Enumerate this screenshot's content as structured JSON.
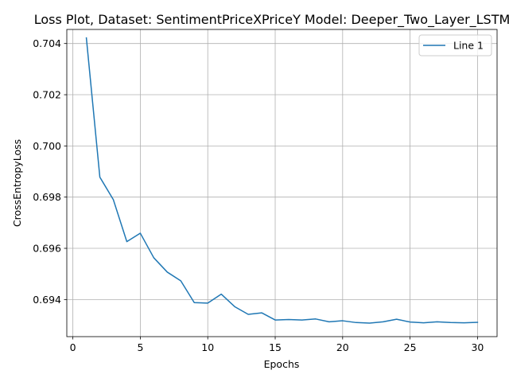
{
  "chart_data": {
    "type": "line",
    "title": "Loss Plot, Dataset: SentimentPriceXPriceY Model: Deeper_Two_Layer_LSTM",
    "xlabel": "Epochs",
    "ylabel": "CrossEntropyLoss",
    "xlim": [
      -0.45,
      31.45
    ],
    "ylim": [
      0.69255,
      0.70455
    ],
    "xticks": [
      0,
      5,
      10,
      15,
      20,
      25,
      30
    ],
    "xtick_labels": [
      "0",
      "5",
      "10",
      "15",
      "20",
      "25",
      "30"
    ],
    "yticks": [
      0.694,
      0.696,
      0.698,
      0.7,
      0.702,
      0.704
    ],
    "ytick_labels": [
      "0.694",
      "0.696",
      "0.698",
      "0.700",
      "0.702",
      "0.704"
    ],
    "grid": true,
    "legend_position": "upper right",
    "series": [
      {
        "name": "Line 1",
        "color": "#1f77b4",
        "x": [
          1,
          2,
          3,
          4,
          5,
          6,
          7,
          8,
          9,
          10,
          11,
          12,
          13,
          14,
          15,
          16,
          17,
          18,
          19,
          20,
          21,
          22,
          23,
          24,
          25,
          26,
          27,
          28,
          29,
          30
        ],
        "values": [
          0.70422,
          0.69878,
          0.6979,
          0.69626,
          0.69659,
          0.69563,
          0.69507,
          0.69473,
          0.69388,
          0.69386,
          0.69421,
          0.69372,
          0.69342,
          0.69348,
          0.6932,
          0.69322,
          0.6932,
          0.69324,
          0.69313,
          0.69317,
          0.6931,
          0.69308,
          0.69313,
          0.69323,
          0.69312,
          0.69309,
          0.69313,
          0.6931,
          0.69309,
          0.69311
        ]
      }
    ]
  }
}
